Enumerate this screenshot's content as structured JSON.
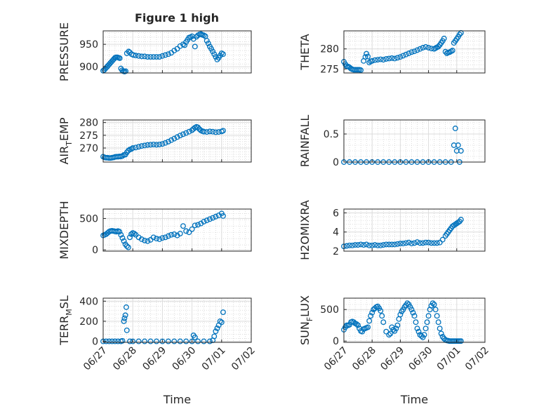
{
  "figure": {
    "title": "Figure 1 high",
    "xlabel": "Time"
  },
  "colors": {
    "marker": "#0072BD",
    "axis": "#262626",
    "grid": "#dcdcdc",
    "minor_grid": "#c8c8c8"
  },
  "x_ticks": [
    "06/27",
    "06/28",
    "06/29",
    "06/30",
    "07/01",
    "07/02"
  ],
  "chart_data": [
    {
      "type": "scatter",
      "ylabel": "PRESSURE",
      "xlim": [
        0,
        5
      ],
      "ylim": [
        886,
        980
      ],
      "yticks": [
        900,
        950
      ],
      "grid": true,
      "marker": "open-circle",
      "x": [
        0.0,
        0.04,
        0.08,
        0.12,
        0.16,
        0.2,
        0.24,
        0.28,
        0.32,
        0.36,
        0.4,
        0.44,
        0.48,
        0.52,
        0.56,
        0.6,
        0.64,
        0.68,
        0.72,
        0.76,
        0.8,
        0.86,
        0.9,
        0.96,
        1.02,
        1.1,
        1.2,
        1.3,
        1.4,
        1.5,
        1.6,
        1.7,
        1.8,
        1.9,
        2.0,
        2.1,
        2.2,
        2.3,
        2.4,
        2.5,
        2.6,
        2.7,
        2.75,
        2.8,
        2.85,
        2.9,
        2.95,
        3.0,
        3.05,
        3.1,
        3.15,
        3.2,
        3.25,
        3.3,
        3.35,
        3.4,
        3.45,
        3.5,
        3.55,
        3.6,
        3.65,
        3.7,
        3.75,
        3.8,
        3.85,
        3.9,
        3.95,
        4.0,
        4.05
      ],
      "y": [
        891,
        893,
        896,
        899,
        902,
        905,
        908,
        911,
        914,
        917,
        920,
        921,
        921,
        920,
        919,
        896,
        892,
        890,
        889,
        890,
        930,
        934,
        932,
        928,
        926,
        925,
        924,
        923,
        923,
        922,
        922,
        922,
        922,
        922,
        924,
        926,
        928,
        931,
        936,
        940,
        946,
        950,
        948,
        955,
        960,
        965,
        966,
        968,
        962,
        945,
        967,
        970,
        972,
        973,
        971,
        970,
        968,
        958,
        952,
        945,
        940,
        934,
        928,
        922,
        916,
        920,
        925,
        930,
        928
      ]
    },
    {
      "type": "scatter",
      "ylabel": "THETA",
      "xlim": [
        0,
        5
      ],
      "ylim": [
        274,
        284.5
      ],
      "yticks": [
        275,
        280
      ],
      "grid": true,
      "marker": "open-circle",
      "x": [
        0.0,
        0.05,
        0.1,
        0.15,
        0.2,
        0.25,
        0.3,
        0.35,
        0.4,
        0.45,
        0.5,
        0.55,
        0.6,
        0.7,
        0.76,
        0.8,
        0.85,
        0.9,
        0.95,
        1.0,
        1.1,
        1.2,
        1.3,
        1.4,
        1.5,
        1.6,
        1.7,
        1.8,
        1.9,
        2.0,
        2.1,
        2.2,
        2.3,
        2.4,
        2.5,
        2.6,
        2.7,
        2.8,
        2.9,
        3.0,
        3.1,
        3.2,
        3.25,
        3.3,
        3.35,
        3.4,
        3.45,
        3.5,
        3.55,
        3.6,
        3.65,
        3.7,
        3.75,
        3.8,
        3.85,
        3.9,
        3.95,
        4.0,
        4.05,
        4.1,
        4.15
      ],
      "y": [
        276.8,
        276.2,
        275.7,
        275.6,
        275.4,
        275.1,
        274.9,
        274.8,
        274.8,
        274.8,
        274.8,
        274.8,
        274.7,
        277.0,
        278.0,
        278.8,
        278.1,
        276.6,
        276.9,
        277.0,
        277.2,
        277.3,
        277.4,
        277.3,
        277.5,
        277.6,
        277.7,
        277.6,
        277.8,
        278.0,
        278.3,
        278.6,
        278.9,
        279.2,
        279.4,
        279.7,
        280.0,
        280.3,
        280.5,
        280.3,
        280.1,
        280.0,
        280.2,
        280.4,
        280.6,
        281.0,
        281.5,
        282.0,
        282.6,
        279.3,
        278.9,
        279.1,
        279.2,
        279.4,
        279.6,
        281.5,
        282.0,
        282.5,
        283.0,
        283.6,
        284.0
      ]
    },
    {
      "type": "scatter",
      "ylabel_main": "AIR",
      "ylabel_sub": "T",
      "ylabel_rest": "EMP",
      "xlim": [
        0,
        5
      ],
      "ylim": [
        264.5,
        281
      ],
      "yticks": [
        270,
        275,
        280
      ],
      "grid": true,
      "marker": "open-circle",
      "x": [
        0.0,
        0.05,
        0.1,
        0.15,
        0.2,
        0.25,
        0.3,
        0.35,
        0.4,
        0.45,
        0.5,
        0.55,
        0.6,
        0.65,
        0.7,
        0.75,
        0.8,
        0.85,
        0.9,
        0.95,
        1.0,
        1.1,
        1.2,
        1.3,
        1.4,
        1.5,
        1.6,
        1.7,
        1.8,
        1.9,
        2.0,
        2.1,
        2.2,
        2.3,
        2.4,
        2.5,
        2.6,
        2.7,
        2.8,
        2.9,
        3.0,
        3.05,
        3.1,
        3.15,
        3.2,
        3.25,
        3.3,
        3.35,
        3.4,
        3.5,
        3.6,
        3.7,
        3.8,
        3.9,
        4.0,
        4.05
      ],
      "y": [
        266.6,
        266.3,
        266.2,
        266.2,
        266.1,
        266.1,
        266.2,
        266.3,
        266.5,
        266.6,
        266.6,
        266.7,
        266.7,
        266.9,
        267.3,
        267.4,
        268.3,
        269.0,
        269.4,
        269.6,
        270.0,
        270.2,
        270.5,
        270.8,
        271.0,
        271.2,
        271.3,
        271.4,
        271.3,
        271.4,
        271.6,
        272.0,
        272.5,
        273.1,
        273.7,
        274.3,
        274.9,
        275.4,
        275.9,
        276.4,
        277.0,
        277.5,
        278.0,
        278.3,
        278.1,
        277.4,
        276.9,
        276.6,
        276.4,
        276.3,
        276.5,
        276.4,
        276.2,
        276.3,
        276.5,
        276.8
      ]
    },
    {
      "type": "scatter",
      "ylabel": "RAINFALL",
      "xlim": [
        0,
        5
      ],
      "ylim": [
        0,
        0.75
      ],
      "yticks": [
        0,
        0.5
      ],
      "grid": true,
      "marker": "open-circle",
      "x": [
        0.0,
        0.2,
        0.4,
        0.6,
        0.8,
        1.0,
        1.2,
        1.4,
        1.6,
        1.8,
        2.0,
        2.2,
        2.4,
        2.6,
        2.8,
        3.0,
        3.2,
        3.4,
        3.6,
        3.8,
        3.9,
        3.95,
        4.0,
        4.05,
        4.1,
        4.15
      ],
      "y": [
        0,
        0,
        0,
        0,
        0,
        0,
        0,
        0,
        0,
        0,
        0,
        0,
        0,
        0,
        0,
        0,
        0,
        0,
        0,
        0,
        0.3,
        0.6,
        0.2,
        0.3,
        0.0,
        0.2
      ]
    },
    {
      "type": "scatter",
      "ylabel": "MIXDEPTH",
      "xlim": [
        0,
        5
      ],
      "ylim": [
        -20,
        650
      ],
      "yticks": [
        0,
        500
      ],
      "grid": true,
      "marker": "open-circle",
      "x": [
        0.0,
        0.05,
        0.1,
        0.15,
        0.2,
        0.25,
        0.3,
        0.35,
        0.4,
        0.45,
        0.5,
        0.55,
        0.6,
        0.65,
        0.7,
        0.75,
        0.8,
        0.85,
        0.9,
        0.95,
        1.0,
        1.05,
        1.1,
        1.2,
        1.3,
        1.4,
        1.5,
        1.6,
        1.7,
        1.8,
        1.9,
        2.0,
        2.1,
        2.2,
        2.3,
        2.4,
        2.5,
        2.6,
        2.7,
        2.8,
        2.9,
        3.0,
        3.1,
        3.2,
        3.3,
        3.4,
        3.5,
        3.6,
        3.7,
        3.8,
        3.9,
        4.0,
        4.05
      ],
      "y": [
        230,
        240,
        250,
        270,
        290,
        300,
        305,
        300,
        295,
        290,
        300,
        290,
        240,
        190,
        140,
        90,
        60,
        40,
        200,
        250,
        270,
        260,
        240,
        200,
        170,
        150,
        140,
        160,
        200,
        180,
        170,
        190,
        200,
        220,
        240,
        250,
        230,
        260,
        380,
        300,
        280,
        330,
        390,
        400,
        420,
        450,
        470,
        490,
        510,
        530,
        550,
        580,
        540
      ]
    },
    {
      "type": "scatter",
      "ylabel": "H2OMIXRA",
      "xlim": [
        0,
        5
      ],
      "ylim": [
        2,
        6.4
      ],
      "yticks": [
        2,
        4,
        6
      ],
      "grid": true,
      "marker": "open-circle",
      "x": [
        0.0,
        0.1,
        0.2,
        0.3,
        0.4,
        0.5,
        0.6,
        0.7,
        0.8,
        0.9,
        1.0,
        1.1,
        1.2,
        1.3,
        1.4,
        1.5,
        1.6,
        1.7,
        1.8,
        1.9,
        2.0,
        2.1,
        2.2,
        2.3,
        2.4,
        2.5,
        2.6,
        2.7,
        2.8,
        2.9,
        3.0,
        3.1,
        3.2,
        3.3,
        3.4,
        3.5,
        3.6,
        3.65,
        3.7,
        3.75,
        3.8,
        3.85,
        3.9,
        3.95,
        4.0,
        4.05,
        4.1,
        4.15
      ],
      "y": [
        2.5,
        2.55,
        2.6,
        2.6,
        2.65,
        2.65,
        2.7,
        2.65,
        2.7,
        2.6,
        2.6,
        2.65,
        2.6,
        2.6,
        2.65,
        2.7,
        2.7,
        2.7,
        2.7,
        2.75,
        2.8,
        2.8,
        2.85,
        2.9,
        2.8,
        2.85,
        2.95,
        2.85,
        2.85,
        2.9,
        2.9,
        2.85,
        2.85,
        2.85,
        2.9,
        3.2,
        3.6,
        3.8,
        4.0,
        4.2,
        4.4,
        4.6,
        4.7,
        4.8,
        4.9,
        5.0,
        5.1,
        5.3
      ]
    },
    {
      "type": "scatter",
      "ylabel_main": "TERR",
      "ylabel_sub": "M",
      "ylabel_rest": "SL",
      "xlim": [
        0,
        5
      ],
      "ylim": [
        -10,
        430
      ],
      "yticks": [
        0,
        200,
        400
      ],
      "grid": true,
      "marker": "open-circle",
      "x": [
        0.0,
        0.1,
        0.2,
        0.3,
        0.4,
        0.5,
        0.6,
        0.65,
        0.7,
        0.72,
        0.75,
        0.78,
        0.8,
        0.9,
        1.0,
        1.2,
        1.4,
        1.6,
        1.8,
        2.0,
        2.2,
        2.4,
        2.6,
        2.8,
        3.0,
        3.05,
        3.1,
        3.2,
        3.4,
        3.6,
        3.7,
        3.75,
        3.8,
        3.85,
        3.9,
        3.95,
        4.0,
        4.05
      ],
      "y": [
        0,
        0,
        0,
        0,
        0,
        0,
        0,
        5,
        200,
        230,
        260,
        340,
        110,
        0,
        0,
        0,
        0,
        0,
        0,
        0,
        0,
        0,
        0,
        0,
        0,
        60,
        40,
        0,
        0,
        0,
        10,
        50,
        100,
        130,
        160,
        200,
        190,
        290
      ]
    },
    {
      "type": "scatter",
      "ylabel_main": "SUN",
      "ylabel_sub": "F",
      "ylabel_rest": "LUX",
      "xlim": [
        0,
        5
      ],
      "ylim": [
        -20,
        680
      ],
      "yticks": [
        0,
        500
      ],
      "grid": true,
      "marker": "open-circle",
      "x": [
        0.0,
        0.05,
        0.1,
        0.15,
        0.2,
        0.25,
        0.3,
        0.35,
        0.4,
        0.45,
        0.5,
        0.55,
        0.6,
        0.65,
        0.7,
        0.75,
        0.8,
        0.85,
        0.9,
        0.95,
        1.0,
        1.05,
        1.1,
        1.15,
        1.2,
        1.25,
        1.3,
        1.35,
        1.4,
        1.5,
        1.6,
        1.65,
        1.7,
        1.75,
        1.8,
        1.85,
        1.9,
        1.95,
        2.0,
        2.05,
        2.1,
        2.15,
        2.2,
        2.25,
        2.3,
        2.35,
        2.4,
        2.45,
        2.5,
        2.55,
        2.6,
        2.65,
        2.7,
        2.75,
        2.8,
        2.85,
        2.9,
        2.95,
        3.0,
        3.05,
        3.1,
        3.15,
        3.2,
        3.25,
        3.3,
        3.35,
        3.4,
        3.45,
        3.5,
        3.55,
        3.6,
        3.65,
        3.7,
        3.75,
        3.8,
        3.85,
        3.9,
        3.95,
        4.0,
        4.05,
        4.1,
        4.15
      ],
      "y": [
        180,
        220,
        250,
        250,
        260,
        300,
        310,
        300,
        280,
        270,
        250,
        200,
        160,
        150,
        190,
        200,
        210,
        220,
        320,
        400,
        450,
        500,
        520,
        540,
        550,
        520,
        480,
        400,
        300,
        150,
        100,
        120,
        220,
        180,
        160,
        200,
        250,
        350,
        420,
        470,
        500,
        540,
        570,
        600,
        580,
        540,
        500,
        450,
        400,
        300,
        200,
        150,
        100,
        80,
        60,
        100,
        200,
        300,
        400,
        500,
        560,
        600,
        580,
        500,
        400,
        300,
        200,
        120,
        70,
        40,
        20,
        10,
        5,
        0,
        0,
        0,
        0,
        0,
        0,
        0,
        0,
        0
      ]
    }
  ]
}
